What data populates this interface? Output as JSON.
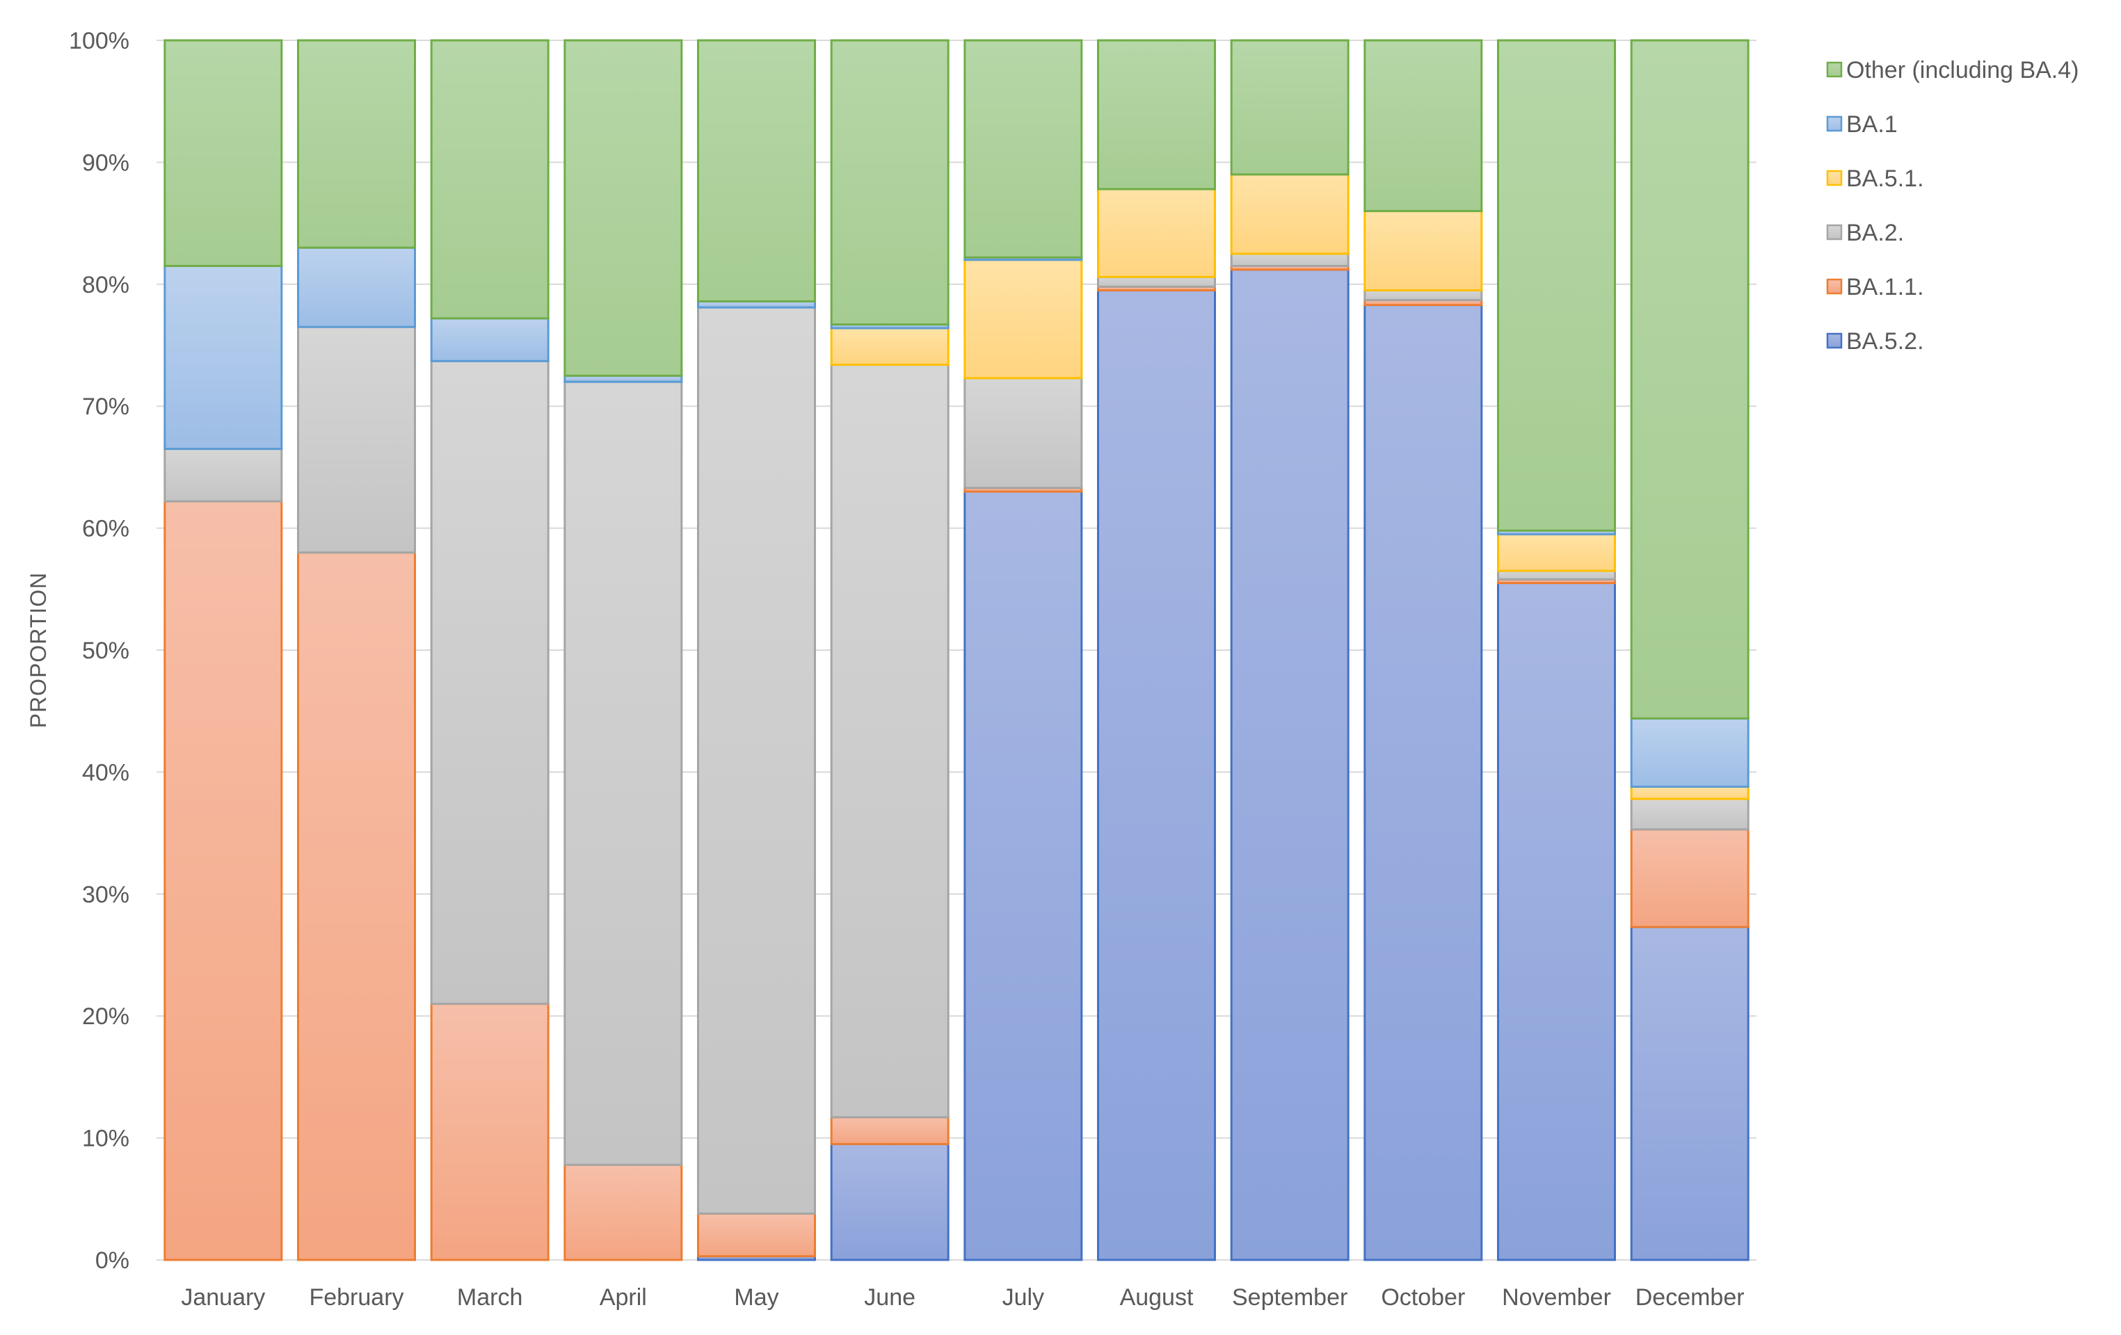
{
  "chart_data": {
    "type": "bar",
    "stacked": true,
    "title": "",
    "xlabel": "",
    "ylabel": "PROPORTION",
    "ylim": [
      0,
      100
    ],
    "y_ticks": [
      "0%",
      "10%",
      "20%",
      "30%",
      "40%",
      "50%",
      "60%",
      "70%",
      "80%",
      "90%",
      "100%"
    ],
    "categories": [
      "January",
      "February",
      "March",
      "April",
      "May",
      "June",
      "July",
      "August",
      "September",
      "October",
      "November",
      "December"
    ],
    "series": [
      {
        "name": "BA.5.2.",
        "key": "ba52",
        "fill_top": "#a9b8e3",
        "fill_bottom": "#8aa1da",
        "stroke": "#4472c4",
        "values": [
          0,
          0,
          0,
          0,
          0.3,
          9.5,
          63,
          79.5,
          81.2,
          78.3,
          55.5,
          27.3
        ]
      },
      {
        "name": "BA.1.1.",
        "key": "ba11",
        "fill_top": "#f6bfa9",
        "fill_bottom": "#f4a582",
        "stroke": "#ed7d31",
        "values": [
          62.2,
          58,
          21,
          7.8,
          3.5,
          2.2,
          0.3,
          0.3,
          0.3,
          0.4,
          0.3,
          8
        ]
      },
      {
        "name": "BA.2.",
        "key": "ba2",
        "fill_top": "#d6d6d6",
        "fill_bottom": "#c4c4c4",
        "stroke": "#a5a5a5",
        "values": [
          4.3,
          18.5,
          52.7,
          64.2,
          74.3,
          61.7,
          9,
          0.8,
          1,
          0.8,
          0.7,
          2.5
        ]
      },
      {
        "name": "BA.5.1.",
        "key": "ba51",
        "fill_top": "#ffe3a6",
        "fill_bottom": "#ffd47f",
        "stroke": "#ffc000",
        "values": [
          0,
          0,
          0,
          0,
          0,
          3,
          9.7,
          7.2,
          6.5,
          6.5,
          3,
          1
        ]
      },
      {
        "name": "BA.1",
        "key": "ba1",
        "fill_top": "#bcd2ee",
        "fill_bottom": "#9dbde6",
        "stroke": "#5b9bd5",
        "values": [
          15,
          6.5,
          3.5,
          0.5,
          0.5,
          0.3,
          0.2,
          0,
          0,
          0,
          0.3,
          5.6
        ]
      },
      {
        "name": "Other (including BA.4)",
        "key": "other",
        "fill_top": "#b6d7a8",
        "fill_bottom": "#a5cc91",
        "stroke": "#70ad47",
        "values": [
          18.5,
          17,
          22.8,
          27.5,
          21.4,
          23.3,
          17.8,
          12.2,
          11,
          14,
          40.2,
          55.6
        ]
      }
    ],
    "legend": {
      "position": "right",
      "order": [
        "other",
        "ba1",
        "ba51",
        "ba2",
        "ba11",
        "ba52"
      ]
    },
    "grid": true,
    "gridline_color": "#d9d9d9"
  }
}
